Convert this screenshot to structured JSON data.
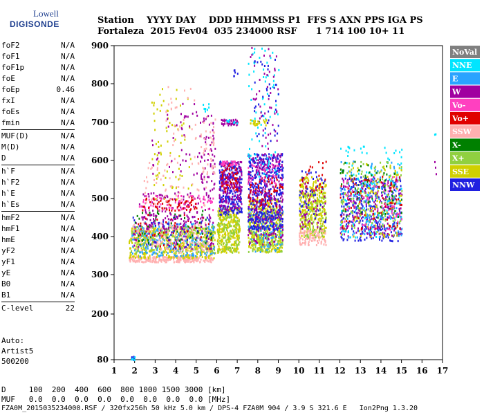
{
  "logo": {
    "line1": "Lowell",
    "line2": "DIGISONDE"
  },
  "header": {
    "line1": "Station    YYYY DAY    DDD HHMMSS P1  FFS S AXN PPS IGA PS",
    "line2": "Fortaleza  2015 Fev04  035 234000 RSF      1 714 100 10+ 11"
  },
  "params": [
    [
      {
        "label": "foF2",
        "value": "N/A"
      },
      {
        "label": "foF1",
        "value": "N/A"
      },
      {
        "label": "foF1p",
        "value": "N/A"
      },
      {
        "label": "foE",
        "value": "N/A"
      },
      {
        "label": "foEp",
        "value": "0.46"
      },
      {
        "label": "fxI",
        "value": "N/A"
      },
      {
        "label": "foEs",
        "value": "N/A"
      },
      {
        "label": "fmin",
        "value": "N/A"
      }
    ],
    [
      {
        "label": "MUF(D)",
        "value": "N/A"
      },
      {
        "label": "M(D)",
        "value": "N/A"
      },
      {
        "label": "D",
        "value": "N/A"
      }
    ],
    [
      {
        "label": "h`F",
        "value": "N/A"
      },
      {
        "label": "h`F2",
        "value": "N/A"
      },
      {
        "label": "h`E",
        "value": "N/A"
      },
      {
        "label": "h`Es",
        "value": "N/A"
      }
    ],
    [
      {
        "label": "hmF2",
        "value": "N/A"
      },
      {
        "label": "hmF1",
        "value": "N/A"
      },
      {
        "label": "hmE",
        "value": "N/A"
      },
      {
        "label": "yF2",
        "value": "N/A"
      },
      {
        "label": "yF1",
        "value": "N/A"
      },
      {
        "label": "yE",
        "value": "N/A"
      },
      {
        "label": "B0",
        "value": "N/A"
      },
      {
        "label": "B1",
        "value": "N/A"
      }
    ],
    [
      {
        "label": "C-level",
        "value": "22"
      }
    ]
  ],
  "auto": {
    "line1": "Auto:",
    "line2": "Artist5",
    "line3": "500200"
  },
  "footer": {
    "line1": "D     100  200  400  600  800 1000 1500 3000 [km]",
    "line2": "MUF   0.0  0.0  0.0  0.0  0.0  0.0  0.0  0.0 [MHz]",
    "line3": "FZA0M_2015035234000.RSF / 320fx256h 50 kHz 5.0 km / DPS-4 FZA0M 904 / 3.9 S 321.6 E   Ion2Png 1.3.20"
  },
  "legend": [
    {
      "label": "NoVal",
      "color": "#808080"
    },
    {
      "label": "NNE",
      "color": "#00e5ff"
    },
    {
      "label": "E",
      "color": "#29a3ff"
    },
    {
      "label": "W",
      "color": "#a000a0"
    },
    {
      "label": "Vo-",
      "color": "#ff40c0"
    },
    {
      "label": "Vo+",
      "color": "#e00000"
    },
    {
      "label": "SSW",
      "color": "#ffb0b0"
    },
    {
      "label": "X-",
      "color": "#008000"
    },
    {
      "label": "X+",
      "color": "#90d040"
    },
    {
      "label": "SSE",
      "color": "#d0d000"
    },
    {
      "label": "NNW",
      "color": "#2020e0"
    }
  ],
  "chart_data": {
    "type": "scatter",
    "title": "",
    "xlabel": "",
    "ylabel": "",
    "xlim": [
      1,
      17
    ],
    "ylim": [
      80,
      900
    ],
    "x_ticks": [
      1,
      2,
      3,
      4,
      5,
      6,
      7,
      8,
      9,
      10,
      11,
      12,
      13,
      14,
      15,
      16,
      17
    ],
    "y_ticks": [
      80,
      200,
      300,
      400,
      500,
      600,
      700,
      800,
      900
    ],
    "grid": false,
    "legend_position": "right",
    "clusters": [
      {
        "x0": 1.8,
        "x1": 2.0,
        "y0": 80,
        "y1": 90,
        "color": "#2020e0",
        "n": 12
      },
      {
        "x0": 1.8,
        "x1": 2.0,
        "y0": 80,
        "y1": 90,
        "color": "#00e5ff",
        "n": 6
      },
      {
        "x0": 1.7,
        "x1": 5.8,
        "y0": 335,
        "y1": 350,
        "color": "#ffb0b0",
        "n": 240
      },
      {
        "x0": 1.7,
        "x1": 5.9,
        "y0": 345,
        "y1": 430,
        "color": "#d0d000",
        "n": 500
      },
      {
        "x0": 1.8,
        "x1": 5.9,
        "y0": 350,
        "y1": 440,
        "color": "#29a3ff",
        "n": 260
      },
      {
        "x0": 1.8,
        "x1": 5.9,
        "y0": 360,
        "y1": 430,
        "color": "#90d040",
        "n": 160
      },
      {
        "x0": 1.8,
        "x1": 5.6,
        "y0": 360,
        "y1": 440,
        "color": "#ffb0b0",
        "n": 160
      },
      {
        "x0": 1.9,
        "x1": 5.8,
        "y0": 370,
        "y1": 460,
        "color": "#a000a0",
        "n": 90
      },
      {
        "x0": 1.9,
        "x1": 5.8,
        "y0": 370,
        "y1": 460,
        "color": "#e00000",
        "n": 40
      },
      {
        "x0": 1.8,
        "x1": 5.8,
        "y0": 370,
        "y1": 460,
        "color": "#2020e0",
        "n": 50
      },
      {
        "x0": 2.0,
        "x1": 5.8,
        "y0": 380,
        "y1": 470,
        "color": "#008000",
        "n": 50
      },
      {
        "x0": 2.2,
        "x1": 5.8,
        "y0": 420,
        "y1": 520,
        "color": "#a000a0",
        "n": 120
      },
      {
        "x0": 2.2,
        "x1": 5.8,
        "y0": 470,
        "y1": 510,
        "color": "#ff40c0",
        "n": 70
      },
      {
        "x0": 2.2,
        "x1": 5.0,
        "y0": 470,
        "y1": 505,
        "color": "#e00000",
        "n": 60
      },
      {
        "x0": 2.4,
        "x1": 5.6,
        "y0": 480,
        "y1": 600,
        "color": "#ffb0b0",
        "n": 60
      },
      {
        "x0": 2.8,
        "x1": 4.8,
        "y0": 500,
        "y1": 790,
        "color": "#d0d000",
        "n": 70
      },
      {
        "x0": 2.8,
        "x1": 5.2,
        "y0": 560,
        "y1": 760,
        "color": "#a000a0",
        "n": 45
      },
      {
        "x0": 3.5,
        "x1": 5.0,
        "y0": 600,
        "y1": 800,
        "color": "#ffb0b0",
        "n": 30
      },
      {
        "x0": 5.2,
        "x1": 5.9,
        "y0": 520,
        "y1": 720,
        "color": "#a000a0",
        "n": 60
      },
      {
        "x0": 5.2,
        "x1": 5.9,
        "y0": 560,
        "y1": 720,
        "color": "#ffb0b0",
        "n": 40
      },
      {
        "x0": 5.3,
        "x1": 5.6,
        "y0": 730,
        "y1": 750,
        "color": "#00e5ff",
        "n": 8
      },
      {
        "x0": 6.0,
        "x1": 7.1,
        "y0": 360,
        "y1": 480,
        "color": "#d0d000",
        "n": 280
      },
      {
        "x0": 6.0,
        "x1": 7.1,
        "y0": 360,
        "y1": 460,
        "color": "#90d040",
        "n": 90
      },
      {
        "x0": 6.1,
        "x1": 7.2,
        "y0": 460,
        "y1": 600,
        "color": "#2020e0",
        "n": 260
      },
      {
        "x0": 6.1,
        "x1": 7.2,
        "y0": 470,
        "y1": 600,
        "color": "#a000a0",
        "n": 160
      },
      {
        "x0": 6.2,
        "x1": 7.0,
        "y0": 520,
        "y1": 600,
        "color": "#e00000",
        "n": 50
      },
      {
        "x0": 6.2,
        "x1": 7.0,
        "y0": 590,
        "y1": 600,
        "color": "#ff40c0",
        "n": 30
      },
      {
        "x0": 6.2,
        "x1": 7.0,
        "y0": 695,
        "y1": 710,
        "color": "#a000a0",
        "n": 40
      },
      {
        "x0": 6.4,
        "x1": 7.0,
        "y0": 700,
        "y1": 710,
        "color": "#00e5ff",
        "n": 10
      },
      {
        "x0": 6.8,
        "x1": 7.0,
        "y0": 820,
        "y1": 840,
        "color": "#2020e0",
        "n": 6
      },
      {
        "x0": 7.5,
        "x1": 9.2,
        "y0": 360,
        "y1": 500,
        "color": "#d0d000",
        "n": 420
      },
      {
        "x0": 7.5,
        "x1": 9.2,
        "y0": 360,
        "y1": 480,
        "color": "#90d040",
        "n": 160
      },
      {
        "x0": 7.5,
        "x1": 9.2,
        "y0": 360,
        "y1": 470,
        "color": "#29a3ff",
        "n": 100
      },
      {
        "x0": 7.5,
        "x1": 9.2,
        "y0": 380,
        "y1": 470,
        "color": "#a000a0",
        "n": 110
      },
      {
        "x0": 7.5,
        "x1": 9.2,
        "y0": 420,
        "y1": 620,
        "color": "#2020e0",
        "n": 460
      },
      {
        "x0": 7.5,
        "x1": 9.2,
        "y0": 470,
        "y1": 620,
        "color": "#a000a0",
        "n": 160
      },
      {
        "x0": 7.5,
        "x1": 9.2,
        "y0": 480,
        "y1": 560,
        "color": "#e00000",
        "n": 60
      },
      {
        "x0": 7.5,
        "x1": 9.2,
        "y0": 540,
        "y1": 600,
        "color": "#ff40c0",
        "n": 40
      },
      {
        "x0": 7.5,
        "x1": 9.0,
        "y0": 560,
        "y1": 900,
        "color": "#00e5ff",
        "n": 70
      },
      {
        "x0": 7.6,
        "x1": 9.0,
        "y0": 620,
        "y1": 900,
        "color": "#a000a0",
        "n": 45
      },
      {
        "x0": 7.8,
        "x1": 9.0,
        "y0": 650,
        "y1": 880,
        "color": "#2020e0",
        "n": 40
      },
      {
        "x0": 7.6,
        "x1": 8.4,
        "y0": 695,
        "y1": 710,
        "color": "#d0d000",
        "n": 25
      },
      {
        "x0": 10.0,
        "x1": 11.3,
        "y0": 400,
        "y1": 560,
        "color": "#d0d000",
        "n": 330
      },
      {
        "x0": 10.0,
        "x1": 11.3,
        "y0": 380,
        "y1": 420,
        "color": "#ffb0b0",
        "n": 110
      },
      {
        "x0": 10.0,
        "x1": 11.3,
        "y0": 400,
        "y1": 520,
        "color": "#90d040",
        "n": 100
      },
      {
        "x0": 10.0,
        "x1": 11.3,
        "y0": 420,
        "y1": 560,
        "color": "#a000a0",
        "n": 50
      },
      {
        "x0": 10.0,
        "x1": 11.3,
        "y0": 440,
        "y1": 580,
        "color": "#2020e0",
        "n": 40
      },
      {
        "x0": 10.0,
        "x1": 11.3,
        "y0": 520,
        "y1": 600,
        "color": "#e00000",
        "n": 25
      },
      {
        "x0": 12.0,
        "x1": 15.0,
        "y0": 390,
        "y1": 560,
        "color": "#2020e0",
        "n": 320
      },
      {
        "x0": 12.0,
        "x1": 15.0,
        "y0": 400,
        "y1": 560,
        "color": "#a000a0",
        "n": 200
      },
      {
        "x0": 12.0,
        "x1": 15.0,
        "y0": 400,
        "y1": 600,
        "color": "#29a3ff",
        "n": 150
      },
      {
        "x0": 12.0,
        "x1": 15.0,
        "y0": 400,
        "y1": 640,
        "color": "#00e5ff",
        "n": 120
      },
      {
        "x0": 12.0,
        "x1": 15.0,
        "y0": 420,
        "y1": 600,
        "color": "#90d040",
        "n": 110
      },
      {
        "x0": 12.0,
        "x1": 15.0,
        "y0": 400,
        "y1": 600,
        "color": "#d0d000",
        "n": 110
      },
      {
        "x0": 12.0,
        "x1": 15.0,
        "y0": 450,
        "y1": 600,
        "color": "#008000",
        "n": 60
      },
      {
        "x0": 12.0,
        "x1": 15.0,
        "y0": 420,
        "y1": 560,
        "color": "#e00000",
        "n": 70
      },
      {
        "x0": 12.0,
        "x1": 15.0,
        "y0": 420,
        "y1": 560,
        "color": "#ff40c0",
        "n": 60
      },
      {
        "x0": 16.5,
        "x1": 16.7,
        "y0": 500,
        "y1": 680,
        "color": "#a000a0",
        "n": 3
      },
      {
        "x0": 16.5,
        "x1": 16.7,
        "y0": 670,
        "y1": 690,
        "color": "#00e5ff",
        "n": 2
      }
    ]
  }
}
